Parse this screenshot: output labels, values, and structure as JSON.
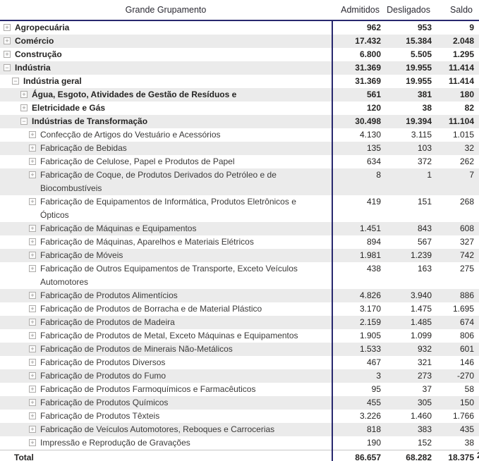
{
  "header": {
    "row_header_label": "Grande Grupamento",
    "columns": [
      "Admitidos",
      "Desligados",
      "Saldo"
    ]
  },
  "colors": {
    "grid_line": "#28286E",
    "band": "#EBEBEB",
    "text": "#252423",
    "icon_border": "#AEACAA",
    "total_border": "#C6C6C6"
  },
  "rows": [
    {
      "label": "Agropecuária",
      "level": 1,
      "expanded": false,
      "bold": true,
      "admitidos": "962",
      "desligados": "953",
      "saldo": "9"
    },
    {
      "label": "Comércio",
      "level": 1,
      "expanded": false,
      "bold": true,
      "admitidos": "17.432",
      "desligados": "15.384",
      "saldo": "2.048"
    },
    {
      "label": "Construção",
      "level": 1,
      "expanded": false,
      "bold": true,
      "admitidos": "6.800",
      "desligados": "5.505",
      "saldo": "1.295"
    },
    {
      "label": "Indústria",
      "level": 1,
      "expanded": true,
      "bold": true,
      "admitidos": "31.369",
      "desligados": "19.955",
      "saldo": "11.414"
    },
    {
      "label": "Indústria geral",
      "level": 2,
      "expanded": true,
      "bold": true,
      "admitidos": "31.369",
      "desligados": "19.955",
      "saldo": "11.414"
    },
    {
      "label": "Água, Esgoto, Atividades de Gestão de Resíduos e",
      "level": 3,
      "expanded": false,
      "bold": true,
      "admitidos": "561",
      "desligados": "381",
      "saldo": "180"
    },
    {
      "label": "Eletricidade e Gás",
      "level": 3,
      "expanded": false,
      "bold": true,
      "admitidos": "120",
      "desligados": "38",
      "saldo": "82"
    },
    {
      "label": "Indústrias de Transformação",
      "level": 3,
      "expanded": true,
      "bold": true,
      "admitidos": "30.498",
      "desligados": "19.394",
      "saldo": "11.104"
    },
    {
      "label": "Confecção de Artigos do Vestuário e Acessórios",
      "level": 4,
      "expanded": false,
      "bold": false,
      "admitidos": "4.130",
      "desligados": "3.115",
      "saldo": "1.015"
    },
    {
      "label": "Fabricação de Bebidas",
      "level": 4,
      "expanded": false,
      "bold": false,
      "admitidos": "135",
      "desligados": "103",
      "saldo": "32"
    },
    {
      "label": "Fabricação de Celulose, Papel e Produtos de Papel",
      "level": 4,
      "expanded": false,
      "bold": false,
      "admitidos": "634",
      "desligados": "372",
      "saldo": "262"
    },
    {
      "label": "Fabricação de Coque, de Produtos Derivados do Petróleo e de Biocombustíveis",
      "level": 4,
      "expanded": false,
      "bold": false,
      "admitidos": "8",
      "desligados": "1",
      "saldo": "7"
    },
    {
      "label": "Fabricação de Equipamentos de Informática, Produtos Eletrônicos e Ópticos",
      "level": 4,
      "expanded": false,
      "bold": false,
      "admitidos": "419",
      "desligados": "151",
      "saldo": "268"
    },
    {
      "label": "Fabricação de Máquinas e Equipamentos",
      "level": 4,
      "expanded": false,
      "bold": false,
      "admitidos": "1.451",
      "desligados": "843",
      "saldo": "608"
    },
    {
      "label": "Fabricação de Máquinas, Aparelhos e Materiais Elétricos",
      "level": 4,
      "expanded": false,
      "bold": false,
      "admitidos": "894",
      "desligados": "567",
      "saldo": "327"
    },
    {
      "label": "Fabricação de Móveis",
      "level": 4,
      "expanded": false,
      "bold": false,
      "admitidos": "1.981",
      "desligados": "1.239",
      "saldo": "742"
    },
    {
      "label": "Fabricação de Outros Equipamentos de Transporte, Exceto Veículos Automotores",
      "level": 4,
      "expanded": false,
      "bold": false,
      "admitidos": "438",
      "desligados": "163",
      "saldo": "275"
    },
    {
      "label": "Fabricação de Produtos Alimentícios",
      "level": 4,
      "expanded": false,
      "bold": false,
      "admitidos": "4.826",
      "desligados": "3.940",
      "saldo": "886"
    },
    {
      "label": "Fabricação de Produtos de Borracha e de Material Plástico",
      "level": 4,
      "expanded": false,
      "bold": false,
      "admitidos": "3.170",
      "desligados": "1.475",
      "saldo": "1.695"
    },
    {
      "label": "Fabricação de Produtos de Madeira",
      "level": 4,
      "expanded": false,
      "bold": false,
      "admitidos": "2.159",
      "desligados": "1.485",
      "saldo": "674"
    },
    {
      "label": "Fabricação de Produtos de Metal, Exceto Máquinas e Equipamentos",
      "level": 4,
      "expanded": false,
      "bold": false,
      "admitidos": "1.905",
      "desligados": "1.099",
      "saldo": "806"
    },
    {
      "label": "Fabricação de Produtos de Minerais Não-Metálicos",
      "level": 4,
      "expanded": false,
      "bold": false,
      "admitidos": "1.533",
      "desligados": "932",
      "saldo": "601"
    },
    {
      "label": "Fabricação de Produtos Diversos",
      "level": 4,
      "expanded": false,
      "bold": false,
      "admitidos": "467",
      "desligados": "321",
      "saldo": "146"
    },
    {
      "label": "Fabricação de Produtos do Fumo",
      "level": 4,
      "expanded": false,
      "bold": false,
      "admitidos": "3",
      "desligados": "273",
      "saldo": "-270"
    },
    {
      "label": "Fabricação de Produtos Farmoquímicos e Farmacêuticos",
      "level": 4,
      "expanded": false,
      "bold": false,
      "admitidos": "95",
      "desligados": "37",
      "saldo": "58"
    },
    {
      "label": "Fabricação de Produtos Químicos",
      "level": 4,
      "expanded": false,
      "bold": false,
      "admitidos": "455",
      "desligados": "305",
      "saldo": "150"
    },
    {
      "label": "Fabricação de Produtos Têxteis",
      "level": 4,
      "expanded": false,
      "bold": false,
      "admitidos": "3.226",
      "desligados": "1.460",
      "saldo": "1.766"
    },
    {
      "label": "Fabricação de Veículos Automotores, Reboques e Carrocerias",
      "level": 4,
      "expanded": false,
      "bold": false,
      "admitidos": "818",
      "desligados": "383",
      "saldo": "435"
    },
    {
      "label": "Impressão e Reprodução de Gravações",
      "level": 4,
      "expanded": false,
      "bold": false,
      "admitidos": "190",
      "desligados": "152",
      "saldo": "38"
    }
  ],
  "total": {
    "label": "Total",
    "admitidos": "86.657",
    "desligados": "68.282",
    "saldo": "18.375",
    "clipped_next": "2"
  },
  "icons": {
    "expand_glyph": "+",
    "collapse_glyph": "−"
  }
}
